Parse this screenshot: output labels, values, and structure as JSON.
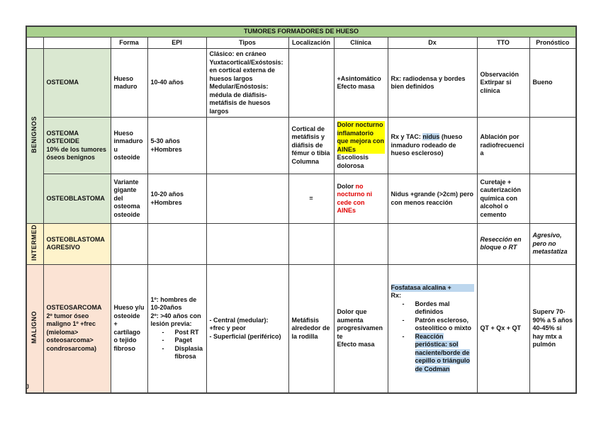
{
  "page": {
    "stray_char": "J"
  },
  "colors": {
    "title_bg": "#A9D08E",
    "benign_bg": "#DAE8D1",
    "intermed_bg": "#FEF3CB",
    "malign_bg": "#FBE3D4",
    "highlight_yellow": "#FFFF00",
    "highlight_blue": "#BDD7EE",
    "red_text": "#E00000"
  },
  "table": {
    "title": "TUMORES FORMADORES DE HUESO",
    "columns": [
      "",
      "",
      "Forma",
      "EPI",
      "Tipos",
      "Localización",
      "Clínica",
      "Dx",
      "TTO",
      "Pronóstico"
    ],
    "groups": [
      {
        "label": "BENIGNOS",
        "theme": "benign",
        "rows": [
          {
            "id": "osteoma",
            "name": {
              "lines": [
                "OSTEOMA"
              ]
            },
            "forma": {
              "lines": [
                "Hueso maduro"
              ]
            },
            "epi": {
              "lines": [
                "10-40 años"
              ]
            },
            "tipos": {
              "lines": [
                "Clásico: en cráneo",
                "Yuxtacortical/Exóstosis: en cortical externa de huesos largos",
                "Medular/Enóstosis: médula de diáfisis-metáfisis de huesos largos"
              ]
            },
            "loc": {
              "lines": []
            },
            "clinica": {
              "lines": [
                "+Asintomático",
                "Efecto masa"
              ]
            },
            "dx": {
              "lines": [
                "Rx: radiodensa y bordes bien definidos"
              ]
            },
            "tto": {
              "lines": [
                "Observación",
                "Extirpar si clínica"
              ]
            },
            "pron": {
              "lines": [
                "Bueno"
              ]
            }
          },
          {
            "id": "osteoma-osteoide",
            "name": {
              "lines": [
                "OSTEOMA OSTEOIDE",
                "10% de los tumores óseos benignos"
              ]
            },
            "forma": {
              "lines": [
                "Hueso inmaduro u osteoide"
              ]
            },
            "epi": {
              "lines": [
                "5-30 años",
                "+Hombres"
              ]
            },
            "tipos": {
              "lines": []
            },
            "loc": {
              "lines": [
                "Cortical de metáfisis y diáfisis de fémur o tibia",
                "Columna"
              ]
            },
            "clinica": {
              "lines": [
                {
                  "t": "Dolor nocturno inflamatorio que mejora con AINEs",
                  "hl": "yellow"
                },
                "Escoliosis dolorosa"
              ]
            },
            "dx": {
              "lines": [
                {
                  "runs": [
                    "Rx y TAC: ",
                    {
                      "t": "nidus",
                      "hl": "blue"
                    },
                    " (hueso inmaduro rodeado de hueso escleroso)"
                  ]
                }
              ]
            },
            "tto": {
              "lines": [
                "Ablación por radiofrecuencia"
              ]
            },
            "pron": {
              "lines": []
            }
          },
          {
            "id": "osteoblastoma",
            "name": {
              "lines": [
                "OSTEOBLASTOMA"
              ]
            },
            "forma": {
              "lines": [
                "Variante gigante del osteoma osteoide"
              ]
            },
            "epi": {
              "lines": [
                "10-20 años",
                "+Hombres"
              ]
            },
            "tipos": {
              "lines": []
            },
            "loc": {
              "align": "center",
              "lines": [
                "="
              ]
            },
            "clinica": {
              "lines": [
                {
                  "runs": [
                    "Dolor ",
                    {
                      "t": "no nocturno ni cede con AINEs",
                      "red": true
                    }
                  ]
                }
              ]
            },
            "dx": {
              "lines": [
                "Nidus +grande (>2cm) pero con menos reacción"
              ]
            },
            "tto": {
              "lines": [
                "Curetaje + cauterización química con alcohol o cemento"
              ]
            },
            "pron": {
              "lines": []
            }
          }
        ]
      },
      {
        "label": "INTERMED",
        "theme": "intermed",
        "rows": [
          {
            "id": "osteoblastoma-agresivo",
            "name": {
              "lines": [
                "OSTEOBLASTOMA AGRESIVO"
              ]
            },
            "forma": {
              "lines": []
            },
            "epi": {
              "lines": []
            },
            "tipos": {
              "lines": []
            },
            "loc": {
              "lines": []
            },
            "clinica": {
              "lines": []
            },
            "dx": {
              "lines": []
            },
            "tto": {
              "lines": [
                {
                  "t": "Resección en bloque o RT",
                  "i": true
                }
              ]
            },
            "pron": {
              "lines": [
                {
                  "t": "Agresivo, pero no metastatiza",
                  "i": true
                }
              ]
            }
          }
        ]
      },
      {
        "label": "MALIGNO",
        "theme": "malign",
        "rows": [
          {
            "id": "osteosarcoma",
            "name": {
              "lines": [
                "OSTEOSARCOMA",
                "2º tumor óseo maligno 1º +frec",
                "(mieloma> osteosarcoma> condrosarcoma)"
              ]
            },
            "forma": {
              "lines": [
                "Hueso y/u osteoide + cartílago o tejido fibroso"
              ]
            },
            "epi": {
              "lines": [
                "1º: hombres de 10-20años",
                "2º: >40 años con lesión previa:",
                {
                  "bullet": true,
                  "runs": [
                    "Post RT"
                  ]
                },
                {
                  "bullet": true,
                  "runs": [
                    "Paget"
                  ]
                },
                {
                  "bullet": true,
                  "runs": [
                    "Displasia fibrosa"
                  ]
                }
              ]
            },
            "tipos": {
              "lines": [
                "- Central (medular): +frec y peor",
                "- Superficial (periférico)"
              ]
            },
            "loc": {
              "lines": [
                "Metáfisis alrededor de la rodilla"
              ]
            },
            "clinica": {
              "lines": [
                "Dolor que aumenta progresivamente",
                "Efecto masa"
              ]
            },
            "dx": {
              "lines": [
                {
                  "t": "Fosfatasa alcalina +",
                  "hl": "blue"
                },
                "Rx:",
                {
                  "bullet": true,
                  "runs": [
                    "Bordes mal definidos"
                  ]
                },
                {
                  "bullet": true,
                  "runs": [
                    "Patrón escleroso, osteolítico o mixto"
                  ]
                },
                {
                  "bullet": true,
                  "runs": [
                    {
                      "t": "Reacción perióstica: sol naciente/borde de cepillo o triángulo de Codman",
                      "hl": "blue"
                    }
                  ]
                }
              ]
            },
            "tto": {
              "lines": [
                "QT + Qx + QT"
              ]
            },
            "pron": {
              "lines": [
                "Superv 70-90% a 5 años",
                "40-45% si hay mtx a pulmón"
              ]
            }
          }
        ]
      }
    ]
  }
}
